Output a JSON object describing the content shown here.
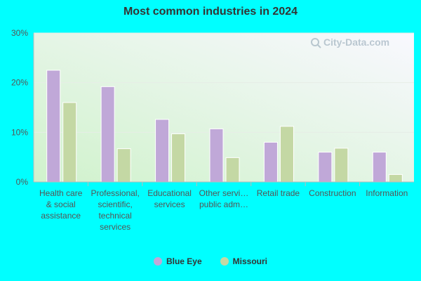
{
  "chart_data": {
    "type": "bar",
    "title": "Most common industries in 2024",
    "categories": [
      [
        "Health care",
        "& social",
        "assistance"
      ],
      [
        "Professional,",
        "scientific,",
        "technical",
        "services"
      ],
      [
        "Educational",
        "services"
      ],
      [
        "Other servi…",
        "public adm…"
      ],
      [
        "Retail trade"
      ],
      [
        "Construction"
      ],
      [
        "Information"
      ]
    ],
    "series": [
      {
        "name": "Blue Eye",
        "color": "#C0A8D8",
        "values": [
          22.5,
          19.2,
          12.6,
          10.7,
          8.0,
          6.0,
          6.0
        ]
      },
      {
        "name": "Missouri",
        "color": "#C4D8A4",
        "values": [
          16.0,
          6.7,
          9.7,
          4.9,
          11.2,
          6.8,
          1.5
        ]
      }
    ],
    "ylim": [
      0,
      30
    ],
    "yticks": [
      0,
      10,
      20,
      30
    ],
    "ytick_labels": [
      "0%",
      "10%",
      "20%",
      "30%"
    ],
    "grid": true,
    "legend_position": "bottom"
  },
  "watermark": "City-Data.com",
  "colors": {
    "page_background": "#00FFFF",
    "plot_gradient_start": "#D4F0D0",
    "plot_gradient_end": "#F8F8FF"
  }
}
